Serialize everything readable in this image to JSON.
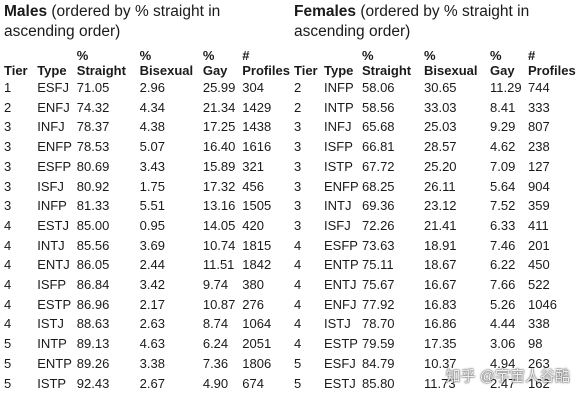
{
  "males": {
    "title": "Males",
    "subtitle": " (ordered by % straight in ascending order)",
    "headers": [
      "Tier",
      "Type",
      "% Straight",
      "% Bisexual",
      "% Gay",
      "# Profiles"
    ],
    "rows": [
      [
        "1",
        "ESFJ",
        "71.05",
        "2.96",
        "25.99",
        "304"
      ],
      [
        "2",
        "ENFJ",
        "74.32",
        "4.34",
        "21.34",
        "1429"
      ],
      [
        "3",
        "INFJ",
        "78.37",
        "4.38",
        "17.25",
        "1438"
      ],
      [
        "3",
        "ENFP",
        "78.53",
        "5.07",
        "16.40",
        "1616"
      ],
      [
        "3",
        "ESFP",
        "80.69",
        "3.43",
        "15.89",
        "321"
      ],
      [
        "3",
        "ISFJ",
        "80.92",
        "1.75",
        "17.32",
        "456"
      ],
      [
        "3",
        "INFP",
        "81.33",
        "5.51",
        "13.16",
        "1505"
      ],
      [
        "4",
        "ESTJ",
        "85.00",
        "0.95",
        "14.05",
        "420"
      ],
      [
        "4",
        "INTJ",
        "85.56",
        "3.69",
        "10.74",
        "1815"
      ],
      [
        "4",
        "ENTJ",
        "86.05",
        "2.44",
        "11.51",
        "1842"
      ],
      [
        "4",
        "ISFP",
        "86.84",
        "3.42",
        "9.74",
        "380"
      ],
      [
        "4",
        "ESTP",
        "86.96",
        "2.17",
        "10.87",
        "276"
      ],
      [
        "4",
        "ISTJ",
        "88.63",
        "2.63",
        "8.74",
        "1064"
      ],
      [
        "5",
        "INTP",
        "89.13",
        "4.63",
        "6.24",
        "2051"
      ],
      [
        "5",
        "ENTP",
        "89.26",
        "3.38",
        "7.36",
        "1806"
      ],
      [
        "5",
        "ISTP",
        "92.43",
        "2.67",
        "4.90",
        "674"
      ]
    ]
  },
  "females": {
    "title": "Females",
    "subtitle": " (ordered by % straight in ascending order)",
    "headers": [
      "Tier",
      "Type",
      "% Straight",
      "% Bisexual",
      "% Gay",
      "# Profiles"
    ],
    "rows": [
      [
        "2",
        "INFP",
        "58.06",
        "30.65",
        "11.29",
        "744"
      ],
      [
        "2",
        "INTP",
        "58.56",
        "33.03",
        "8.41",
        "333"
      ],
      [
        "3",
        "INFJ",
        "65.68",
        "25.03",
        "9.29",
        "807"
      ],
      [
        "3",
        "ISFP",
        "66.81",
        "28.57",
        "4.62",
        "238"
      ],
      [
        "3",
        "ISTP",
        "67.72",
        "25.20",
        "7.09",
        "127"
      ],
      [
        "3",
        "ENFP",
        "68.25",
        "26.11",
        "5.64",
        "904"
      ],
      [
        "3",
        "INTJ",
        "69.36",
        "23.12",
        "7.52",
        "359"
      ],
      [
        "3",
        "ISFJ",
        "72.26",
        "21.41",
        "6.33",
        "411"
      ],
      [
        "4",
        "ESFP",
        "73.63",
        "18.91",
        "7.46",
        "201"
      ],
      [
        "4",
        "ENTP",
        "75.11",
        "18.67",
        "6.22",
        "450"
      ],
      [
        "4",
        "ENTJ",
        "75.67",
        "16.67",
        "7.66",
        "522"
      ],
      [
        "4",
        "ENFJ",
        "77.92",
        "16.83",
        "5.26",
        "1046"
      ],
      [
        "4",
        "ISTJ",
        "78.70",
        "16.86",
        "4.44",
        "338"
      ],
      [
        "4",
        "ESTP",
        "79.59",
        "17.35",
        "3.06",
        "98"
      ],
      [
        "5",
        "ESFJ",
        "84.79",
        "10.37",
        "4.94",
        "263"
      ],
      [
        "5",
        "ESTJ",
        "85.80",
        "11.73",
        "2.47",
        "162"
      ]
    ]
  },
  "watermark": "知乎 @宇宙人谷酷"
}
